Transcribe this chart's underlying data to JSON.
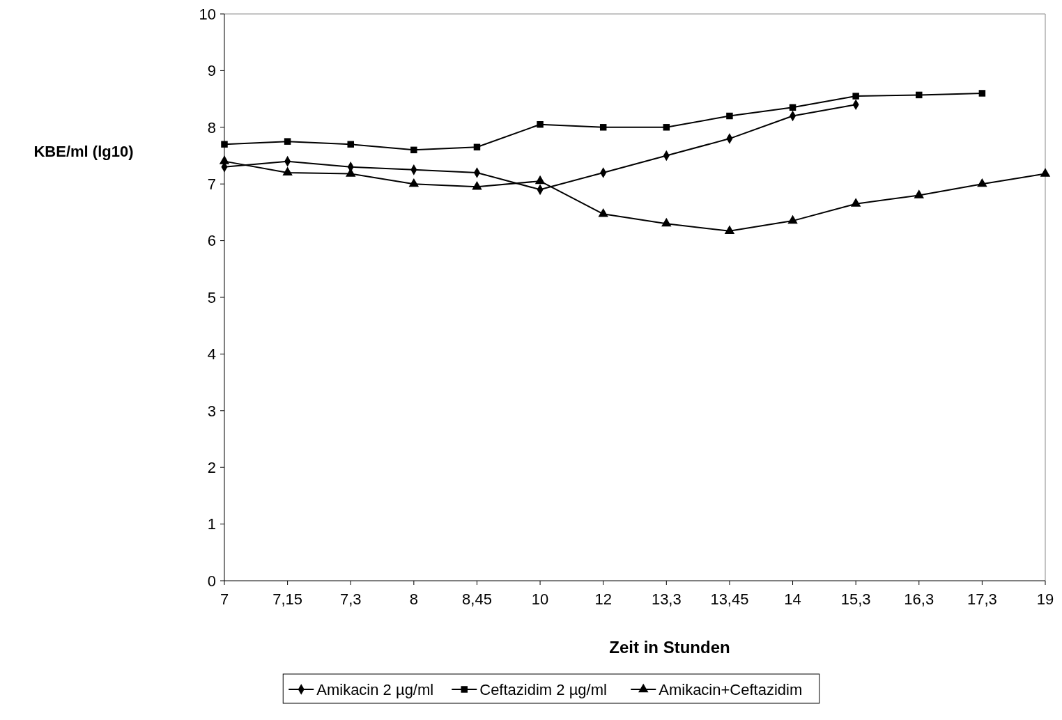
{
  "chart_data": {
    "type": "line",
    "xlabel": "Zeit in Stunden",
    "ylabel": "KBE/ml (lg10)",
    "categories": [
      "7",
      "7,15",
      "7,3",
      "8",
      "8,45",
      "10",
      "12",
      "13,3",
      "13,45",
      "14",
      "15,3",
      "16,3",
      "17,3",
      "19"
    ],
    "ylim": [
      0,
      10
    ],
    "yticks": [
      0,
      1,
      2,
      3,
      4,
      5,
      6,
      7,
      8,
      9,
      10
    ],
    "grid": false,
    "legend": "bottom",
    "series": [
      {
        "name": "Amikacin 2 µg/ml",
        "color": "#000000",
        "marker": "diamond",
        "values": [
          7.3,
          7.4,
          7.3,
          7.25,
          7.2,
          6.9,
          7.2,
          7.5,
          7.8,
          8.2,
          8.4,
          null,
          null,
          null
        ]
      },
      {
        "name": "Ceftazidim 2 µg/ml",
        "color": "#000000",
        "marker": "square",
        "values": [
          7.7,
          7.75,
          7.7,
          7.6,
          7.65,
          8.05,
          8.0,
          8.0,
          8.2,
          8.35,
          8.55,
          8.57,
          8.6,
          null
        ]
      },
      {
        "name": "Amikacin+Ceftazidim",
        "color": "#000000",
        "marker": "triangle",
        "values": [
          7.4,
          7.2,
          7.18,
          7.0,
          6.95,
          7.05,
          6.47,
          6.3,
          6.17,
          6.35,
          6.65,
          6.8,
          7.0,
          7.18
        ]
      }
    ]
  }
}
